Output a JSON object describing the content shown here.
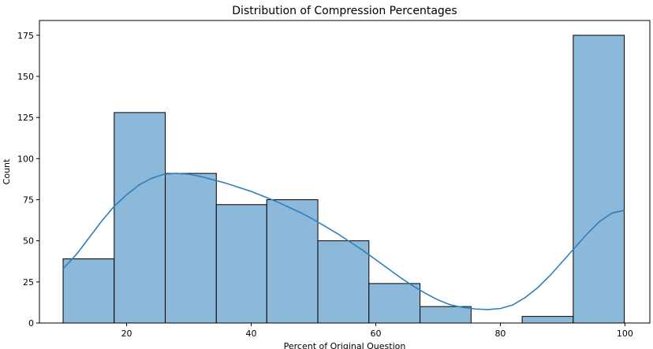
{
  "chart_data": {
    "type": "bar",
    "title": "Distribution of Compression Percentages",
    "xlabel": "Percent of Original Question",
    "ylabel": "Count",
    "xlim": [
      6.0,
      104.0
    ],
    "ylim": [
      0,
      184
    ],
    "xticks": [
      20,
      40,
      60,
      80,
      100
    ],
    "yticks": [
      0,
      25,
      50,
      75,
      100,
      125,
      150,
      175
    ],
    "grid": false,
    "legend": "none",
    "bar_fill": "#8cb8da",
    "bar_edge": "#000000",
    "kde_color": "#2f7fba",
    "bins": [
      {
        "x0": 9.8,
        "x1": 18.0,
        "count": 39
      },
      {
        "x0": 18.0,
        "x1": 26.2,
        "count": 128
      },
      {
        "x0": 26.2,
        "x1": 34.4,
        "count": 91
      },
      {
        "x0": 34.4,
        "x1": 42.5,
        "count": 72
      },
      {
        "x0": 42.5,
        "x1": 50.7,
        "count": 75
      },
      {
        "x0": 50.7,
        "x1": 58.9,
        "count": 50
      },
      {
        "x0": 58.9,
        "x1": 67.1,
        "count": 24
      },
      {
        "x0": 67.1,
        "x1": 75.3,
        "count": 10
      },
      {
        "x0": 75.3,
        "x1": 83.5,
        "count": 0
      },
      {
        "x0": 83.5,
        "x1": 91.7,
        "count": 4
      },
      {
        "x0": 91.7,
        "x1": 99.9,
        "count": 175
      }
    ],
    "kde_curve": {
      "x": [
        9.8,
        12,
        14,
        16,
        18,
        20,
        22,
        24,
        26,
        28,
        30,
        32,
        34,
        36,
        38,
        40,
        42,
        44,
        46,
        48,
        50,
        52,
        54,
        56,
        58,
        60,
        62,
        64,
        66,
        68,
        70,
        72,
        74,
        76,
        78,
        80,
        82,
        84,
        86,
        88,
        90,
        92,
        94,
        96,
        98,
        99.9
      ],
      "y": [
        33,
        42,
        52,
        62,
        71,
        78,
        84,
        88,
        90.5,
        91,
        90.5,
        89,
        87,
        85,
        82.5,
        80,
        77,
        74,
        70.5,
        67,
        63,
        58.5,
        54,
        49,
        44,
        38.5,
        33,
        27.5,
        22.5,
        18,
        14,
        11,
        9.5,
        8.5,
        8.2,
        8.8,
        11,
        15.5,
        21.5,
        29,
        37.5,
        46,
        54.5,
        62,
        67,
        68.5
      ]
    }
  }
}
